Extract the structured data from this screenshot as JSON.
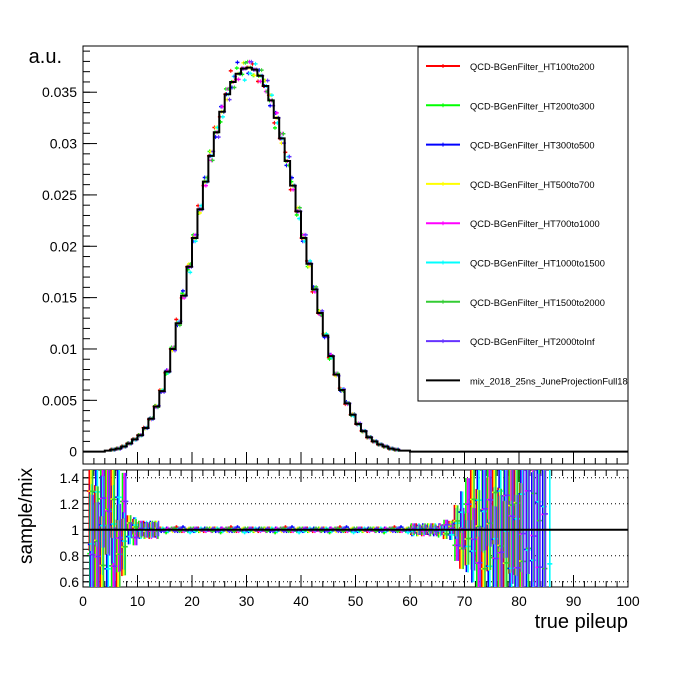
{
  "chart_data": [
    {
      "type": "line",
      "panel": "top",
      "ylabel": "a.u.",
      "xlabel": "",
      "xlim": [
        0,
        100
      ],
      "ylim": [
        -0.0012,
        0.0395
      ],
      "yticks": [
        0,
        0.005,
        0.01,
        0.015,
        0.02,
        0.025,
        0.03,
        0.035
      ],
      "ytick_labels": [
        "0",
        "0.005",
        "0.01",
        "0.015",
        "0.02",
        "0.025",
        "0.03",
        "0.035"
      ],
      "grid": false,
      "legend_position": "top-right",
      "bin_width": 1,
      "reference_series": {
        "name": "mix_2018_25ns_JuneProjectionFull18",
        "color": "#000000",
        "x": [
          0,
          1,
          2,
          3,
          4,
          5,
          6,
          7,
          8,
          9,
          10,
          11,
          12,
          13,
          14,
          15,
          16,
          17,
          18,
          19,
          20,
          21,
          22,
          23,
          24,
          25,
          26,
          27,
          28,
          29,
          30,
          31,
          32,
          33,
          34,
          35,
          36,
          37,
          38,
          39,
          40,
          41,
          42,
          43,
          44,
          45,
          46,
          47,
          48,
          49,
          50,
          51,
          52,
          53,
          54,
          55,
          56,
          57,
          58,
          59,
          60,
          61,
          62,
          63,
          64,
          65,
          66,
          67,
          68,
          69,
          70,
          71,
          72,
          73,
          74,
          75,
          76,
          77,
          78,
          79,
          80,
          81,
          82,
          83,
          84,
          85,
          86,
          87,
          88,
          89,
          90,
          91,
          92,
          93,
          94,
          95,
          96,
          97,
          98,
          99
        ],
        "values": [
          0.0,
          0.0,
          0.0,
          0.0,
          0.0001,
          0.0002,
          0.0003,
          0.0005,
          0.0008,
          0.0012,
          0.0016,
          0.0023,
          0.0032,
          0.0044,
          0.0059,
          0.0078,
          0.01,
          0.0125,
          0.0152,
          0.018,
          0.0208,
          0.0236,
          0.0263,
          0.0288,
          0.0311,
          0.0331,
          0.0348,
          0.036,
          0.0368,
          0.0373,
          0.0374,
          0.0372,
          0.0366,
          0.0356,
          0.0342,
          0.0325,
          0.0305,
          0.0283,
          0.0259,
          0.0234,
          0.0208,
          0.0183,
          0.0158,
          0.0135,
          0.0113,
          0.0093,
          0.0075,
          0.006,
          0.0047,
          0.0036,
          0.0027,
          0.002,
          0.0014,
          0.001,
          0.0007,
          0.0005,
          0.0003,
          0.0002,
          0.0001,
          0.0001,
          0.0,
          0.0,
          0.0,
          0.0,
          0.0,
          0.0,
          0.0,
          0.0,
          0.0,
          0.0,
          0.0,
          0.0,
          0.0,
          0.0,
          0.0,
          0.0,
          0.0,
          0.0,
          0.0,
          0.0,
          0.0,
          0.0,
          0.0,
          0.0,
          0.0,
          0.0,
          0.0,
          0.0,
          0.0,
          0.0,
          0.0,
          0.0,
          0.0,
          0.0,
          0.0,
          0.0,
          0.0,
          0.0,
          0.0,
          0.0
        ]
      },
      "series": [
        {
          "name": "QCD-BGenFilter_HT100to200",
          "color": "#ff0000",
          "ratio_offsets": [
            0.0,
            0.01,
            -0.01,
            0.0,
            0.01,
            -0.01,
            0.0,
            0.02,
            -0.01,
            0.0
          ]
        },
        {
          "name": "QCD-BGenFilter_HT200to300",
          "color": "#00ff00",
          "ratio_offsets": [
            0.01,
            -0.01,
            0.0,
            0.01,
            0.0,
            -0.02,
            0.01,
            0.0,
            0.01,
            -0.01
          ]
        },
        {
          "name": "QCD-BGenFilter_HT300to500",
          "color": "#0000ff",
          "ratio_offsets": [
            -0.01,
            0.0,
            0.01,
            0.0,
            -0.01,
            0.01,
            0.0,
            -0.01,
            0.02,
            0.0
          ]
        },
        {
          "name": "QCD-BGenFilter_HT500to700",
          "color": "#ffff00",
          "ratio_offsets": [
            0.0,
            -0.01,
            0.0,
            0.01,
            0.01,
            0.0,
            -0.01,
            0.0,
            0.0,
            0.01
          ]
        },
        {
          "name": "QCD-BGenFilter_HT700to1000",
          "color": "#ff00ff",
          "ratio_offsets": [
            0.01,
            0.0,
            -0.01,
            -0.01,
            0.0,
            0.01,
            0.01,
            0.0,
            -0.01,
            0.0
          ]
        },
        {
          "name": "QCD-BGenFilter_HT1000to1500",
          "color": "#00ffff",
          "ratio_offsets": [
            -0.01,
            0.01,
            0.0,
            0.0,
            0.01,
            -0.01,
            0.0,
            0.01,
            0.0,
            -0.02
          ]
        },
        {
          "name": "QCD-BGenFilter_HT1500to2000",
          "color": "#33cc33",
          "ratio_offsets": [
            0.0,
            0.0,
            0.01,
            -0.01,
            0.0,
            0.0,
            0.01,
            -0.01,
            0.0,
            0.01
          ]
        },
        {
          "name": "QCD-BGenFilter_HT2000toInf",
          "color": "#6633ff",
          "ratio_offsets": [
            0.01,
            0.0,
            0.0,
            0.01,
            -0.01,
            0.0,
            -0.01,
            0.01,
            0.0,
            0.0
          ]
        }
      ]
    },
    {
      "type": "scatter",
      "panel": "bottom",
      "ylabel": "sample/mix",
      "xlabel": "true pileup",
      "xlim": [
        0,
        100
      ],
      "ylim": [
        0.56,
        1.46
      ],
      "xticks": [
        0,
        10,
        20,
        30,
        40,
        50,
        60,
        70,
        80,
        90,
        100
      ],
      "xtick_labels": [
        "0",
        "10",
        "20",
        "30",
        "40",
        "50",
        "60",
        "70",
        "80",
        "90",
        "100"
      ],
      "yticks": [
        0.6,
        0.8,
        1,
        1.2,
        1.4
      ],
      "ytick_labels": [
        "0.6",
        "0.8",
        "1",
        "1.2",
        "1.4"
      ],
      "grid": "dotted horizontal",
      "reference_line": 1
    }
  ]
}
